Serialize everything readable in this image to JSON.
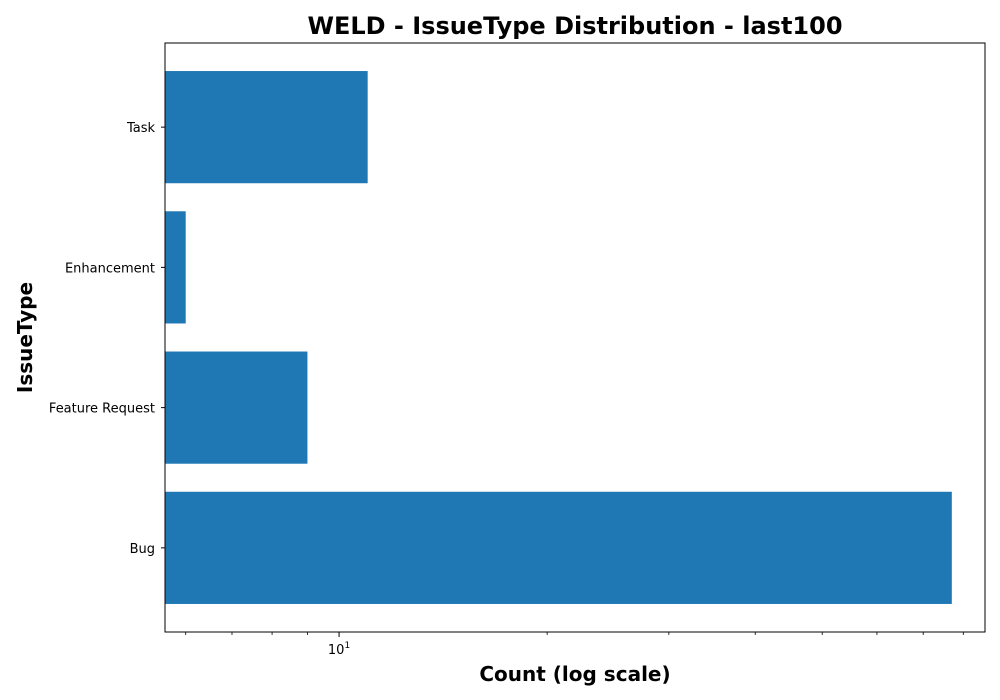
{
  "chart_data": {
    "type": "bar",
    "orientation": "horizontal",
    "title": "WELD - IssueType Distribution - last100",
    "xlabel": "Count (log scale)",
    "ylabel": "IssueType",
    "x_scale": "log",
    "xlim": [
      5.6,
      86
    ],
    "categories": [
      "Bug",
      "Feature Request",
      "Enhancement",
      "Task"
    ],
    "values": [
      77,
      9,
      6,
      11
    ],
    "bar_color": "#1f77b4",
    "x_major_ticks": [
      {
        "value": 10,
        "base": "10",
        "exponent": "1"
      }
    ],
    "x_minor_ticks": [
      6,
      7,
      8,
      9,
      20,
      30,
      40,
      50,
      60,
      70,
      80
    ],
    "grid": false,
    "legend": "none"
  }
}
